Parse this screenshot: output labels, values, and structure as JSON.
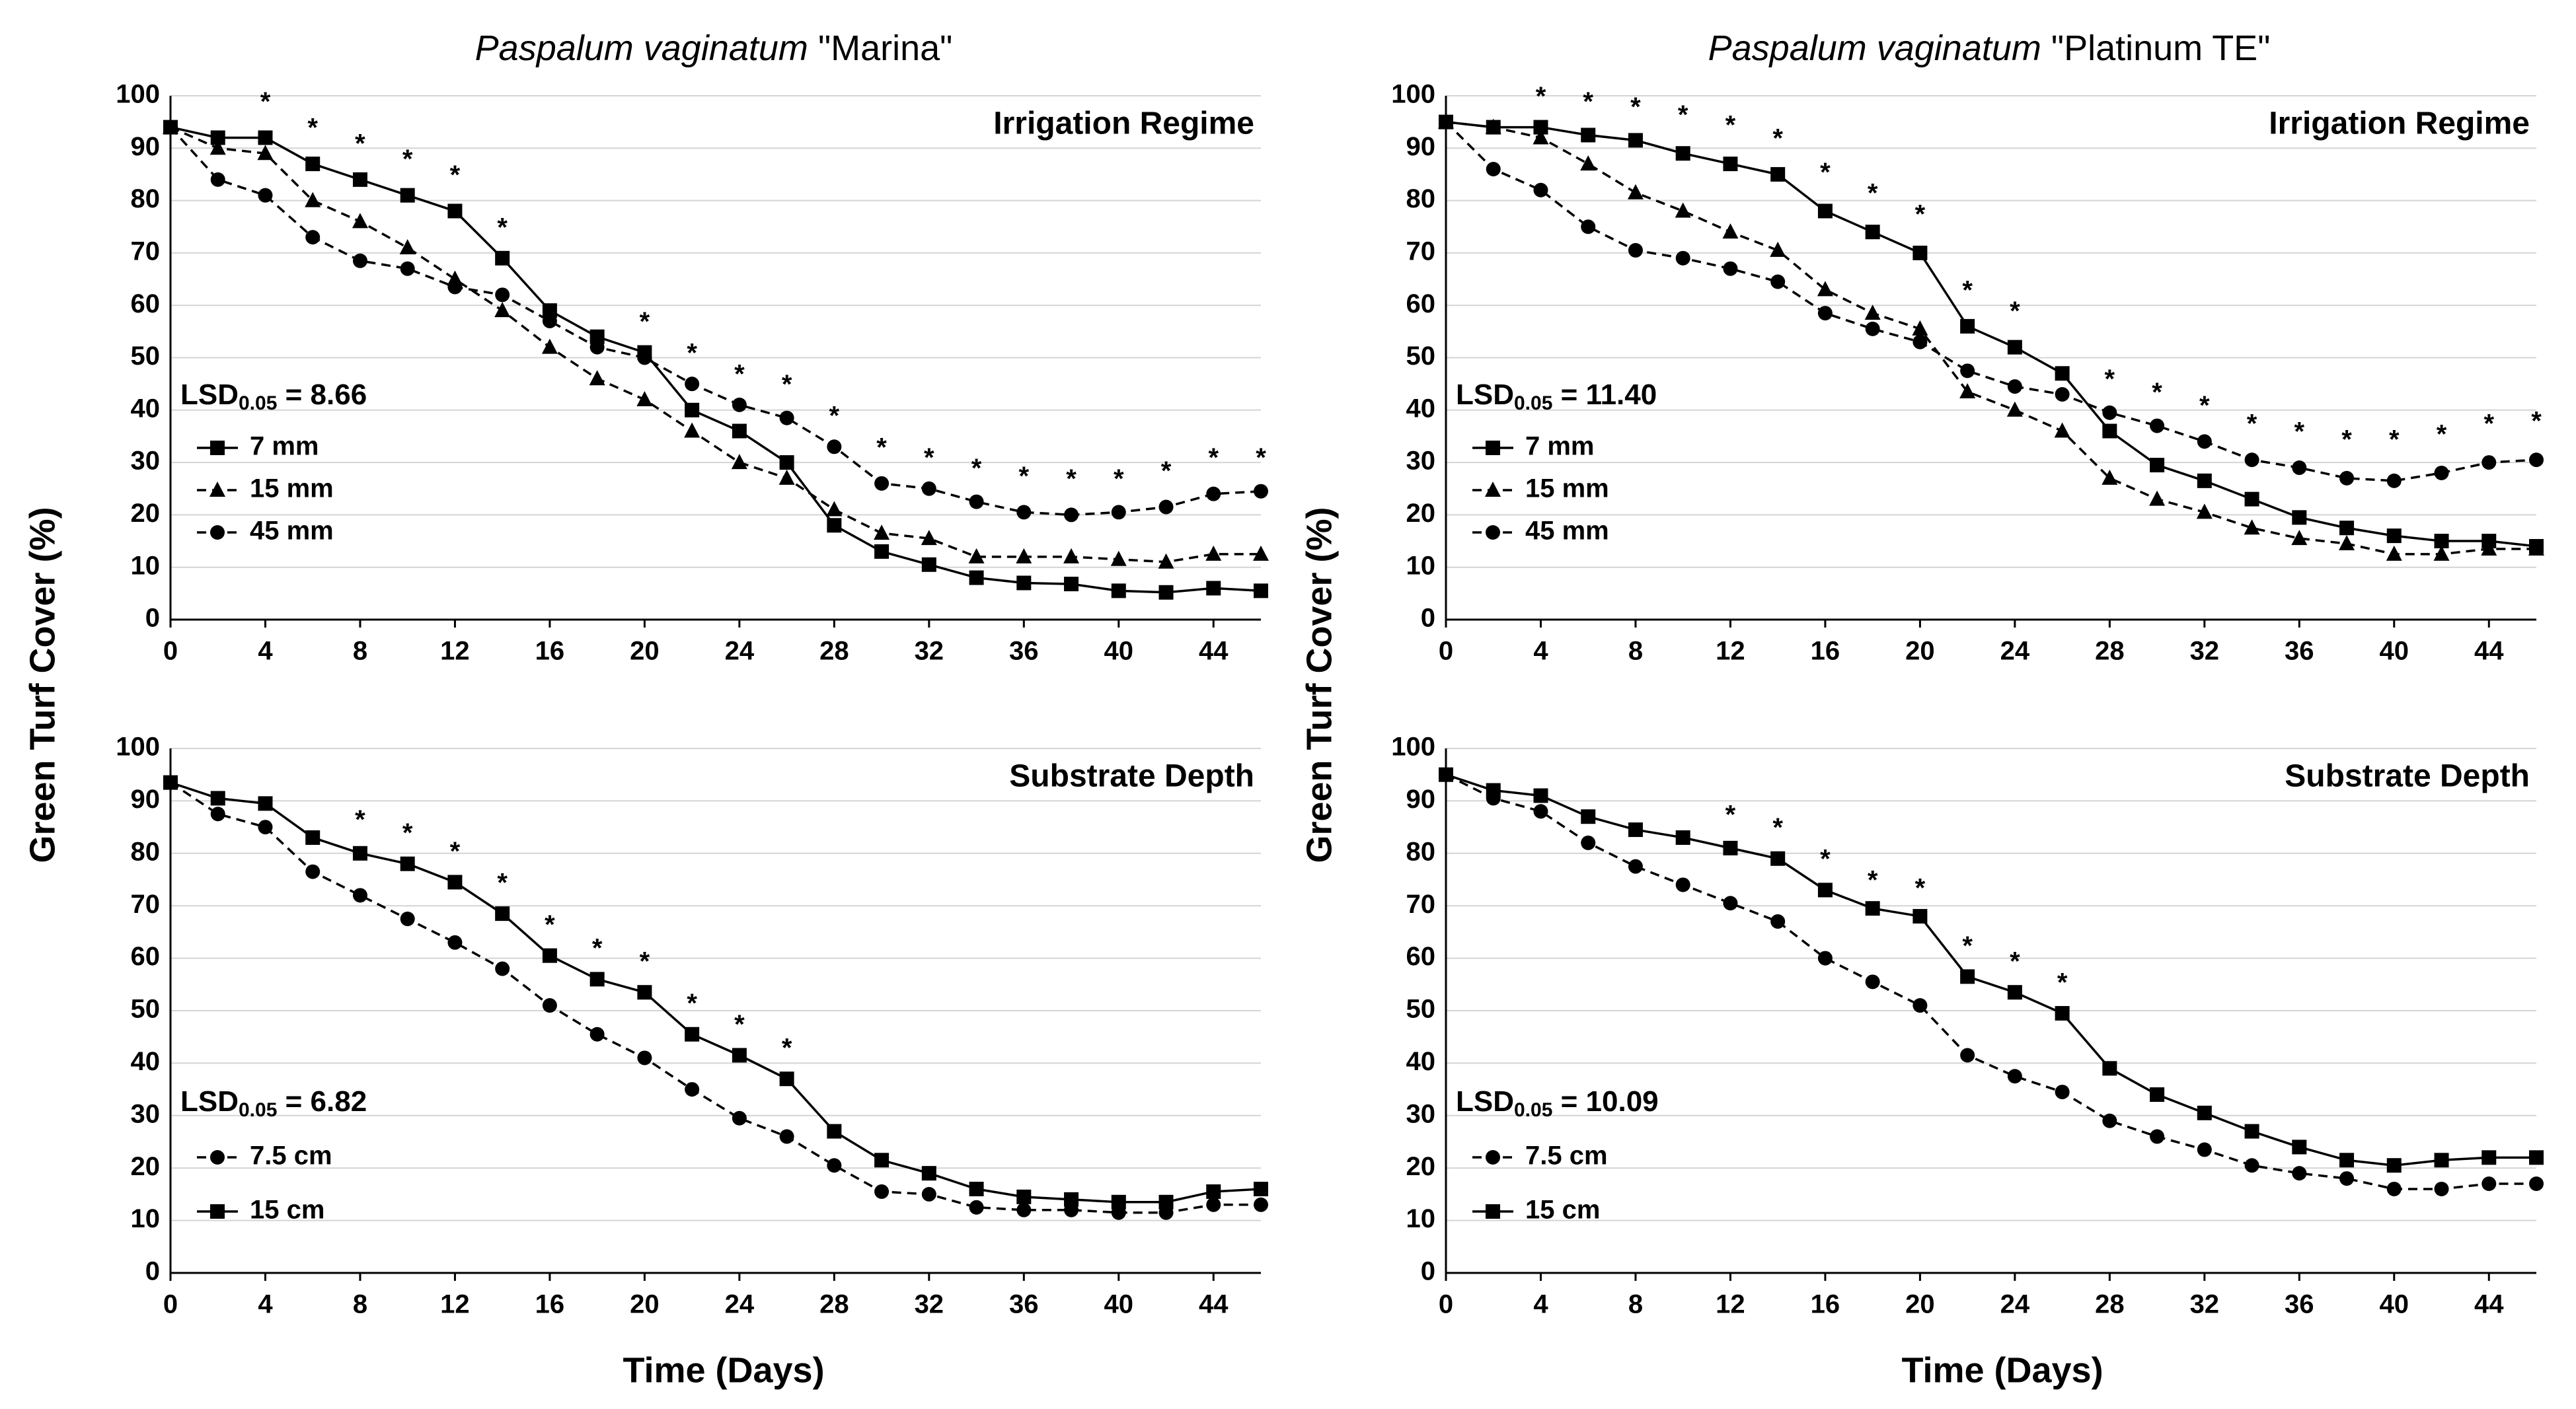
{
  "figure": {
    "ylabel": "Green Turf Cover (%)",
    "xlabel": "Time (Days)"
  },
  "chart_data": [
    {
      "type": "line",
      "panel": "top-left",
      "title_species": "Paspalum vaginatum",
      "title_cultivar": "\"Marina\"",
      "subtitle": "Irrigation Regime",
      "lsd_prefix": "LSD",
      "lsd_sub": "0.05",
      "lsd_value": " = 8.66",
      "xlim": [
        0,
        46
      ],
      "ylim": [
        0,
        100
      ],
      "x_ticks": [
        0,
        4,
        8,
        12,
        16,
        20,
        24,
        28,
        32,
        36,
        40,
        44
      ],
      "y_ticks": [
        0,
        10,
        20,
        30,
        40,
        50,
        60,
        70,
        80,
        90,
        100
      ],
      "x": [
        0,
        2,
        4,
        6,
        8,
        10,
        12,
        14,
        16,
        18,
        20,
        22,
        24,
        26,
        28,
        30,
        32,
        34,
        36,
        38,
        40,
        42,
        44,
        46
      ],
      "series": [
        {
          "name": "7 mm",
          "marker": "square",
          "dash": "solid",
          "values": [
            94,
            92,
            92,
            87,
            84,
            81,
            78,
            69,
            59,
            54,
            51,
            40,
            36,
            30,
            18,
            13,
            10.5,
            8,
            7,
            6.8,
            5.5,
            5.2,
            6,
            5.5
          ]
        },
        {
          "name": "15 mm",
          "marker": "triangle",
          "dash": "dashed",
          "values": [
            94,
            90,
            89,
            80,
            76,
            71,
            65,
            59,
            52,
            46,
            42,
            36,
            30,
            27,
            21,
            16.5,
            15.5,
            12,
            12,
            12,
            11.5,
            11,
            12.5,
            12.5
          ]
        },
        {
          "name": "45 mm",
          "marker": "circle",
          "dash": "dashed",
          "values": [
            94,
            84,
            81,
            73,
            68.5,
            67,
            63.5,
            62,
            57,
            52,
            50,
            45,
            41,
            38.5,
            33,
            26,
            25,
            22.5,
            20.5,
            20,
            20.5,
            21.5,
            24,
            24.5
          ]
        }
      ],
      "sig_x": [
        4,
        6,
        8,
        10,
        12,
        14,
        20,
        22,
        24,
        26,
        28,
        30,
        32,
        34,
        36,
        38,
        40,
        42,
        44,
        46
      ],
      "sig_y": [
        99,
        94,
        91,
        88,
        85,
        75,
        57,
        51,
        47,
        45,
        39,
        33,
        31,
        29,
        27.5,
        27,
        27,
        28.5,
        31,
        31
      ],
      "sig_symbol": "*"
    },
    {
      "type": "line",
      "panel": "top-right",
      "title_species": "Paspalum vaginatum",
      "title_cultivar": "\"Platinum TE\"",
      "subtitle": "Irrigation Regime",
      "lsd_prefix": "LSD",
      "lsd_sub": "0.05",
      "lsd_value": " = 11.40",
      "xlim": [
        0,
        46
      ],
      "ylim": [
        0,
        100
      ],
      "x_ticks": [
        0,
        4,
        8,
        12,
        16,
        20,
        24,
        28,
        32,
        36,
        40,
        44
      ],
      "y_ticks": [
        0,
        10,
        20,
        30,
        40,
        50,
        60,
        70,
        80,
        90,
        100
      ],
      "x": [
        0,
        2,
        4,
        6,
        8,
        10,
        12,
        14,
        16,
        18,
        20,
        22,
        24,
        26,
        28,
        30,
        32,
        34,
        36,
        38,
        40,
        42,
        44,
        46
      ],
      "series": [
        {
          "name": "7 mm",
          "marker": "square",
          "dash": "solid",
          "values": [
            95,
            94,
            94,
            92.5,
            91.5,
            89,
            87,
            85,
            78,
            74,
            70,
            56,
            52,
            47,
            36,
            29.5,
            26.5,
            23,
            19.5,
            17.5,
            16,
            15,
            15,
            14
          ]
        },
        {
          "name": "15 mm",
          "marker": "triangle",
          "dash": "dashed",
          "values": [
            95,
            94,
            92,
            87,
            81.5,
            78,
            74,
            70.5,
            63,
            58.5,
            55.5,
            43.5,
            40,
            36,
            27,
            23,
            20.5,
            17.5,
            15.5,
            14.5,
            12.5,
            12.5,
            13.5,
            13.5
          ]
        },
        {
          "name": "45 mm",
          "marker": "circle",
          "dash": "dashed",
          "values": [
            95,
            86,
            82,
            75,
            70.5,
            69,
            67,
            64.5,
            58.5,
            55.5,
            53,
            47.5,
            44.5,
            43,
            39.5,
            37,
            34,
            30.5,
            29,
            27,
            26.5,
            28,
            30,
            30.5
          ]
        }
      ],
      "sig_x": [
        4,
        6,
        8,
        10,
        12,
        14,
        16,
        18,
        20,
        22,
        24,
        28,
        30,
        32,
        34,
        36,
        38,
        40,
        42,
        44,
        46
      ],
      "sig_y": [
        100,
        99,
        98,
        96.5,
        94.5,
        92,
        85.5,
        81.5,
        77.5,
        63,
        59,
        46,
        43.5,
        41,
        37.5,
        36,
        34.5,
        34.5,
        35.5,
        37.5,
        38
      ],
      "sig_symbol": "*"
    },
    {
      "type": "line",
      "panel": "bottom-left",
      "subtitle": "Substrate Depth",
      "lsd_prefix": "LSD",
      "lsd_sub": "0.05",
      "lsd_value": " = 6.82",
      "xlim": [
        0,
        46
      ],
      "ylim": [
        0,
        100
      ],
      "x_ticks": [
        0,
        4,
        8,
        12,
        16,
        20,
        24,
        28,
        32,
        36,
        40,
        44
      ],
      "y_ticks": [
        0,
        10,
        20,
        30,
        40,
        50,
        60,
        70,
        80,
        90,
        100
      ],
      "x": [
        0,
        2,
        4,
        6,
        8,
        10,
        12,
        14,
        16,
        18,
        20,
        22,
        24,
        26,
        28,
        30,
        32,
        34,
        36,
        38,
        40,
        42,
        44,
        46
      ],
      "series": [
        {
          "name": "7.5 cm",
          "marker": "circle",
          "dash": "dashed",
          "values": [
            93.5,
            87.5,
            85,
            76.5,
            72,
            67.5,
            63,
            58,
            51,
            45.5,
            41,
            35,
            29.5,
            26,
            20.5,
            15.5,
            15,
            12.5,
            12,
            12,
            11.5,
            11.5,
            13,
            13
          ]
        },
        {
          "name": "15 cm",
          "marker": "square",
          "dash": "solid",
          "values": [
            93.5,
            90.5,
            89.5,
            83,
            80,
            78,
            74.5,
            68.5,
            60.5,
            56,
            53.5,
            45.5,
            41.5,
            37,
            27,
            21.5,
            19,
            16,
            14.5,
            14,
            13.5,
            13.5,
            15.5,
            16
          ]
        }
      ],
      "sig_x": [
        8,
        10,
        12,
        14,
        16,
        18,
        20,
        22,
        24,
        26
      ],
      "sig_y": [
        86.5,
        84,
        80.5,
        74.5,
        66.5,
        62,
        59.5,
        51.5,
        47.5,
        43
      ],
      "sig_symbol": "*"
    },
    {
      "type": "line",
      "panel": "bottom-right",
      "subtitle": "Substrate Depth",
      "lsd_prefix": "LSD",
      "lsd_sub": "0.05",
      "lsd_value": " = 10.09",
      "xlim": [
        0,
        46
      ],
      "ylim": [
        0,
        100
      ],
      "x_ticks": [
        0,
        4,
        8,
        12,
        16,
        20,
        24,
        28,
        32,
        36,
        40,
        44
      ],
      "y_ticks": [
        0,
        10,
        20,
        30,
        40,
        50,
        60,
        70,
        80,
        90,
        100
      ],
      "x": [
        0,
        2,
        4,
        6,
        8,
        10,
        12,
        14,
        16,
        18,
        20,
        22,
        24,
        26,
        28,
        30,
        32,
        34,
        36,
        38,
        40,
        42,
        44,
        46
      ],
      "series": [
        {
          "name": "7.5 cm",
          "marker": "circle",
          "dash": "dashed",
          "values": [
            95,
            90.5,
            88,
            82,
            77.5,
            74,
            70.5,
            67,
            60,
            55.5,
            51,
            41.5,
            37.5,
            34.5,
            29,
            26,
            23.5,
            20.5,
            19,
            18,
            16,
            16,
            17,
            17
          ]
        },
        {
          "name": "15 cm",
          "marker": "square",
          "dash": "solid",
          "values": [
            95,
            92,
            91,
            87,
            84.5,
            83,
            81,
            79,
            73,
            69.5,
            68,
            56.5,
            53.5,
            49.5,
            39,
            34,
            30.5,
            27,
            24,
            21.5,
            20.5,
            21.5,
            22,
            22
          ]
        }
      ],
      "sig_x": [
        12,
        14,
        16,
        18,
        20,
        22,
        24,
        26
      ],
      "sig_y": [
        87.5,
        85,
        79,
        75,
        73.5,
        62.5,
        59.5,
        55.5
      ],
      "sig_symbol": "*"
    }
  ]
}
